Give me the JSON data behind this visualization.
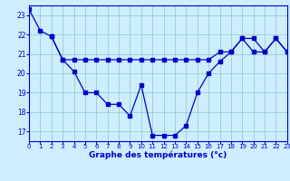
{
  "x": [
    0,
    1,
    2,
    3,
    4,
    5,
    6,
    7,
    8,
    9,
    10,
    11,
    12,
    13,
    14,
    15,
    16,
    17,
    18,
    19,
    20,
    21,
    22,
    23
  ],
  "line1": [
    23.3,
    22.2,
    21.9,
    20.7,
    20.1,
    19.0,
    19.0,
    18.4,
    18.4,
    17.8,
    19.4,
    16.8,
    16.8,
    16.8,
    17.3,
    19.0,
    20.0,
    20.6,
    21.1,
    21.8,
    21.8,
    21.1,
    21.8,
    21.1
  ],
  "line2": [
    null,
    null,
    21.9,
    20.7,
    20.7,
    20.7,
    20.7,
    20.7,
    20.7,
    20.7,
    20.7,
    20.7,
    20.7,
    20.7,
    20.7,
    20.7,
    20.7,
    21.1,
    21.1,
    21.8,
    21.1,
    21.1,
    21.8,
    21.1
  ],
  "xlim": [
    0,
    23
  ],
  "ylim": [
    16.5,
    23.5
  ],
  "yticks": [
    17,
    18,
    19,
    20,
    21,
    22,
    23
  ],
  "xticks": [
    0,
    1,
    2,
    3,
    4,
    5,
    6,
    7,
    8,
    9,
    10,
    11,
    12,
    13,
    14,
    15,
    16,
    17,
    18,
    19,
    20,
    21,
    22,
    23
  ],
  "xlabel": "Graphe des températures (°c)",
  "line_color": "#0000cc",
  "bg_color": "#cceeff",
  "grid_color": "#99cccc"
}
